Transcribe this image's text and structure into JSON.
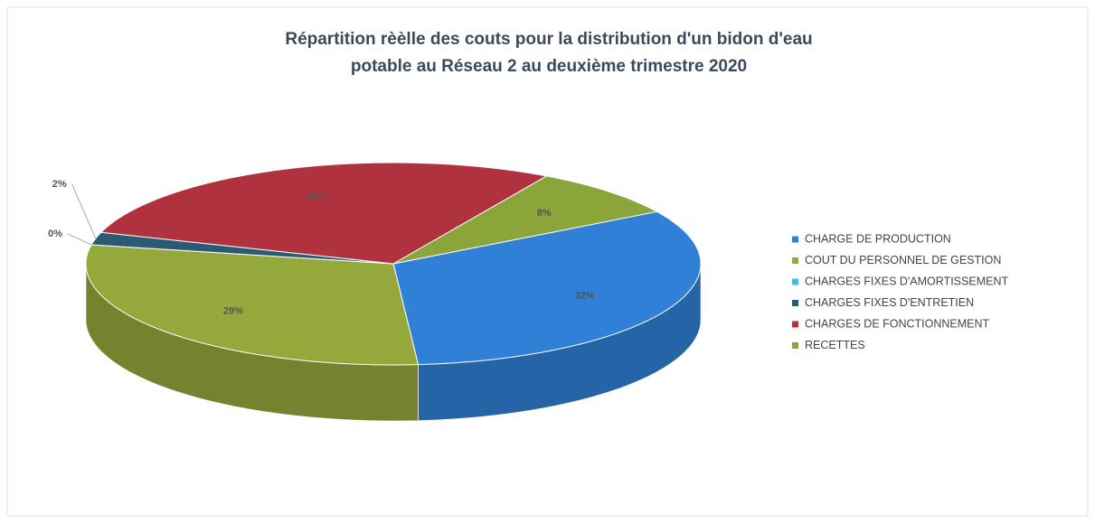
{
  "chart_data": {
    "type": "pie3d",
    "title": [
      "Répartition rèèlle des couts pour la distribution d'un bidon d'eau",
      "potable au Réseau 2 au deuxième trimestre  2020"
    ],
    "categories": [
      "CHARGE DE PRODUCTION",
      "COUT DU PERSONNEL DE GESTION",
      "CHARGES FIXES D'AMORTISSEMENT",
      "CHARGES FIXES D'ENTRETIEN",
      "CHARGES DE FONCTIONNEMENT",
      "RECETTES"
    ],
    "values": [
      32,
      29,
      0,
      2,
      28,
      8
    ],
    "value_labels": [
      "32%",
      "29%",
      "0%",
      "2%",
      "28%",
      "8%"
    ],
    "colors": [
      "#2f80d6",
      "#94a83b",
      "#4fb4e2",
      "#2c5a72",
      "#b1323f",
      "#8aa53a"
    ],
    "legend": "right"
  }
}
